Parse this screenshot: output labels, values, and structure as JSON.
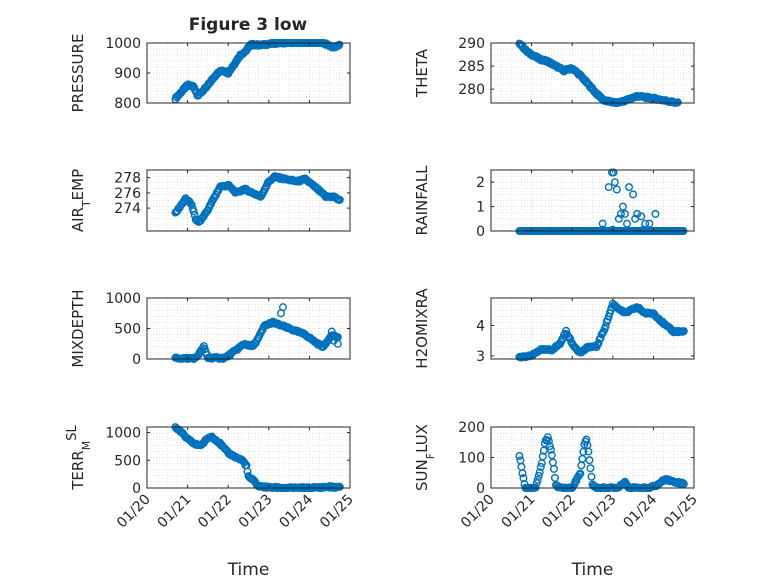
{
  "figure": {
    "title": "Figure 3 low"
  },
  "style": {
    "marker_color": "#0072BD",
    "axes_color": "#262626",
    "grid_color": "#d9d9d9",
    "background": "#ffffff"
  },
  "time_axis": {
    "xlabel": "Time",
    "ticks": [
      "01/20",
      "01/21",
      "01/22",
      "01/23",
      "01/24",
      "01/25"
    ],
    "xlim": [
      0,
      5
    ],
    "x_units": "days since 01/20 00:00"
  },
  "chart_data": [
    {
      "type": "scatter",
      "ylabel": "PRESSURE",
      "ylim": [
        800,
        1000
      ],
      "yticks": [
        "800",
        "900",
        "1000"
      ],
      "grid": true,
      "anchors": [
        [
          0.7,
          815
        ],
        [
          0.9,
          845
        ],
        [
          1.0,
          860
        ],
        [
          1.15,
          855
        ],
        [
          1.25,
          825
        ],
        [
          1.45,
          850
        ],
        [
          1.7,
          895
        ],
        [
          1.85,
          910
        ],
        [
          2.0,
          900
        ],
        [
          2.2,
          940
        ],
        [
          2.3,
          960
        ],
        [
          2.45,
          975
        ],
        [
          2.55,
          995
        ],
        [
          2.8,
          993
        ],
        [
          3.2,
          1000
        ],
        [
          3.9,
          1003
        ],
        [
          4.3,
          1003
        ],
        [
          4.6,
          985
        ],
        [
          4.75,
          995
        ]
      ],
      "sample_step": 0.02
    },
    {
      "type": "scatter",
      "ylabel": "THETA",
      "ylim": [
        277,
        290
      ],
      "yticks": [
        "280",
        "285",
        "290"
      ],
      "grid": true,
      "anchors": [
        [
          0.7,
          290
        ],
        [
          0.9,
          288
        ],
        [
          1.2,
          286.5
        ],
        [
          1.4,
          286
        ],
        [
          1.6,
          285
        ],
        [
          1.8,
          284
        ],
        [
          2.0,
          284.5
        ],
        [
          2.2,
          283
        ],
        [
          2.4,
          281
        ],
        [
          2.6,
          279
        ],
        [
          2.8,
          277.5
        ],
        [
          3.1,
          277
        ],
        [
          3.3,
          277.5
        ],
        [
          3.6,
          278.5
        ],
        [
          4.0,
          278
        ],
        [
          4.3,
          277.5
        ],
        [
          4.6,
          277
        ]
      ],
      "sample_step": 0.02
    },
    {
      "type": "scatter",
      "ylabel": "AIR_TEMP",
      "ylim": [
        271,
        279
      ],
      "yticks": [
        "274",
        "276",
        "278"
      ],
      "grid": true,
      "anchors": [
        [
          0.7,
          273.3
        ],
        [
          0.85,
          274.5
        ],
        [
          0.95,
          275.2
        ],
        [
          1.1,
          274.5
        ],
        [
          1.2,
          272.5
        ],
        [
          1.3,
          272.2
        ],
        [
          1.5,
          273.8
        ],
        [
          1.8,
          276.8
        ],
        [
          2.0,
          277
        ],
        [
          2.2,
          276
        ],
        [
          2.4,
          276.5
        ],
        [
          2.6,
          276
        ],
        [
          2.8,
          275.5
        ],
        [
          3.0,
          277.5
        ],
        [
          3.15,
          278.1
        ],
        [
          3.4,
          277.8
        ],
        [
          3.7,
          277.5
        ],
        [
          3.9,
          277.8
        ],
        [
          4.2,
          276.5
        ],
        [
          4.4,
          275.5
        ],
        [
          4.6,
          275.5
        ],
        [
          4.75,
          275
        ]
      ],
      "sample_step": 0.025
    },
    {
      "type": "scatter",
      "ylabel": "RAINFALL",
      "ylim": [
        0,
        2.5
      ],
      "yticks": [
        "0",
        "1",
        "2"
      ],
      "grid": true,
      "points": [
        [
          2.75,
          0.3
        ],
        [
          2.9,
          1.8
        ],
        [
          2.98,
          2.4
        ],
        [
          3.02,
          2.4
        ],
        [
          3.05,
          2.0
        ],
        [
          3.1,
          1.7
        ],
        [
          3.15,
          0.5
        ],
        [
          3.2,
          0.7
        ],
        [
          3.25,
          1.0
        ],
        [
          3.3,
          0.7
        ],
        [
          3.35,
          0.3
        ],
        [
          3.4,
          1.8
        ],
        [
          3.5,
          1.5
        ],
        [
          3.55,
          0.5
        ],
        [
          3.6,
          0.7
        ],
        [
          3.7,
          0.6
        ],
        [
          3.8,
          0.3
        ],
        [
          3.9,
          0.3
        ],
        [
          4.05,
          0.7
        ],
        [
          2.75,
          0.05
        ],
        [
          3.0,
          0.05
        ],
        [
          3.75,
          0.05
        ]
      ],
      "baseline": {
        "from": 0.7,
        "to": 4.75,
        "value": 0,
        "step": 0.02
      }
    },
    {
      "type": "scatter",
      "ylabel": "MIXDEPTH",
      "ylim": [
        0,
        1000
      ],
      "yticks": [
        "0",
        "500",
        "1000"
      ],
      "grid": true,
      "anchors": [
        [
          0.7,
          15
        ],
        [
          1.0,
          10
        ],
        [
          1.2,
          15
        ],
        [
          1.35,
          150
        ],
        [
          1.4,
          200
        ],
        [
          1.5,
          20
        ],
        [
          1.9,
          15
        ],
        [
          2.0,
          50
        ],
        [
          2.2,
          150
        ],
        [
          2.4,
          250
        ],
        [
          2.6,
          200
        ],
        [
          2.75,
          350
        ],
        [
          2.9,
          550
        ],
        [
          3.1,
          600
        ],
        [
          3.3,
          550
        ],
        [
          3.5,
          500
        ],
        [
          3.7,
          450
        ],
        [
          3.9,
          400
        ],
        [
          4.0,
          350
        ],
        [
          4.2,
          250
        ],
        [
          4.35,
          200
        ],
        [
          4.55,
          400
        ],
        [
          4.7,
          350
        ]
      ],
      "sample_step": 0.025,
      "extra_points": [
        [
          3.35,
          850
        ],
        [
          3.3,
          750
        ],
        [
          4.55,
          450
        ],
        [
          4.6,
          300
        ],
        [
          4.7,
          250
        ]
      ]
    },
    {
      "type": "scatter",
      "ylabel": "H2OMIXRA",
      "ylim": [
        2.9,
        4.9
      ],
      "yticks": [
        "3",
        "4"
      ],
      "grid": true,
      "anchors": [
        [
          0.7,
          2.95
        ],
        [
          1.0,
          3.0
        ],
        [
          1.2,
          3.2
        ],
        [
          1.5,
          3.2
        ],
        [
          1.7,
          3.4
        ],
        [
          1.85,
          3.8
        ],
        [
          2.0,
          3.4
        ],
        [
          2.2,
          3.1
        ],
        [
          2.4,
          3.3
        ],
        [
          2.6,
          3.3
        ],
        [
          2.8,
          3.9
        ],
        [
          3.0,
          4.7
        ],
        [
          3.1,
          4.6
        ],
        [
          3.3,
          4.4
        ],
        [
          3.6,
          4.6
        ],
        [
          3.8,
          4.4
        ],
        [
          4.0,
          4.4
        ],
        [
          4.3,
          4.0
        ],
        [
          4.5,
          3.8
        ],
        [
          4.75,
          3.8
        ]
      ],
      "sample_step": 0.025
    },
    {
      "type": "scatter",
      "ylabel": "TERR_MSL",
      "ylim": [
        0,
        1100
      ],
      "yticks": [
        "0",
        "500",
        "1000"
      ],
      "grid": true,
      "anchors": [
        [
          0.7,
          1100
        ],
        [
          0.85,
          1000
        ],
        [
          1.0,
          880
        ],
        [
          1.2,
          780
        ],
        [
          1.35,
          780
        ],
        [
          1.5,
          900
        ],
        [
          1.6,
          930
        ],
        [
          1.8,
          800
        ],
        [
          2.0,
          630
        ],
        [
          2.2,
          550
        ],
        [
          2.35,
          500
        ],
        [
          2.45,
          400
        ],
        [
          2.5,
          200
        ],
        [
          2.6,
          150
        ],
        [
          2.75,
          30
        ],
        [
          3.0,
          10
        ],
        [
          3.5,
          0
        ],
        [
          4.0,
          0
        ],
        [
          4.5,
          20
        ],
        [
          4.75,
          10
        ]
      ],
      "sample_step": 0.025
    },
    {
      "type": "scatter",
      "ylabel": "SUN_FLUX",
      "ylim": [
        0,
        200
      ],
      "yticks": [
        "0",
        "100",
        "200"
      ],
      "grid": true,
      "anchors": [
        [
          0.7,
          105
        ],
        [
          0.75,
          70
        ],
        [
          0.8,
          30
        ],
        [
          0.85,
          0
        ],
        [
          1.0,
          0
        ],
        [
          1.1,
          0
        ],
        [
          1.25,
          80
        ],
        [
          1.33,
          150
        ],
        [
          1.4,
          165
        ],
        [
          1.5,
          110
        ],
        [
          1.6,
          10
        ],
        [
          1.7,
          0
        ],
        [
          2.0,
          0
        ],
        [
          2.2,
          50
        ],
        [
          2.3,
          140
        ],
        [
          2.35,
          160
        ],
        [
          2.4,
          120
        ],
        [
          2.5,
          10
        ],
        [
          2.6,
          0
        ],
        [
          3.1,
          0
        ],
        [
          3.3,
          20
        ],
        [
          3.4,
          0
        ],
        [
          3.5,
          0
        ],
        [
          3.9,
          0
        ],
        [
          4.1,
          10
        ],
        [
          4.3,
          30
        ],
        [
          4.5,
          20
        ],
        [
          4.75,
          15
        ]
      ],
      "sample_step": 0.025
    }
  ]
}
